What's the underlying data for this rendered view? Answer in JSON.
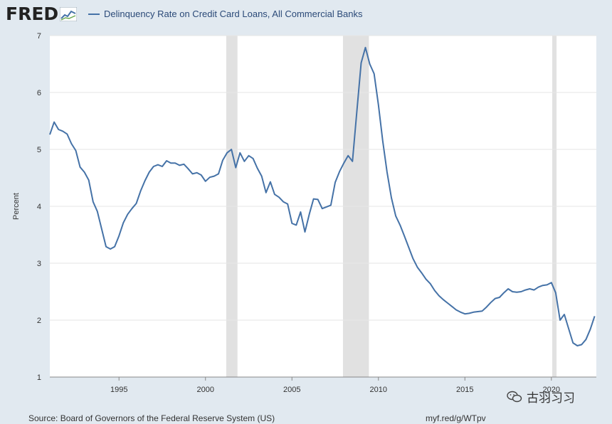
{
  "header": {
    "logo_text": "FRED",
    "legend_label": "Delinquency Rate on Credit Card Loans, All Commercial Banks"
  },
  "colors": {
    "line": "#4572a7",
    "recession": "#e1e1e1",
    "background": "#e1e9f0",
    "plot": "#ffffff"
  },
  "chart_data": {
    "type": "line",
    "title": "Delinquency Rate on Credit Card Loans, All Commercial Banks",
    "xlabel": "",
    "ylabel": "Percent",
    "xlim": [
      1991.0,
      2022.6
    ],
    "ylim": [
      1,
      7
    ],
    "x_ticks": [
      1995,
      2000,
      2005,
      2010,
      2015,
      2020
    ],
    "y_ticks": [
      1,
      2,
      3,
      4,
      5,
      6,
      7
    ],
    "grid": "horizontal",
    "legend_position": "top-left",
    "recessions": [
      [
        2001.2,
        2001.85
      ],
      [
        2007.95,
        2009.45
      ],
      [
        2020.05,
        2020.3
      ]
    ],
    "series": [
      {
        "name": "Delinquency Rate on Credit Card Loans, All Commercial Banks",
        "x": [
          1991.0,
          1991.25,
          1991.5,
          1991.75,
          1992.0,
          1992.25,
          1992.5,
          1992.75,
          1993.0,
          1993.25,
          1993.5,
          1993.75,
          1994.0,
          1994.25,
          1994.5,
          1994.75,
          1995.0,
          1995.25,
          1995.5,
          1995.75,
          1996.0,
          1996.25,
          1996.5,
          1996.75,
          1997.0,
          1997.25,
          1997.5,
          1997.75,
          1998.0,
          1998.25,
          1998.5,
          1998.75,
          1999.0,
          1999.25,
          1999.5,
          1999.75,
          2000.0,
          2000.25,
          2000.5,
          2000.75,
          2001.0,
          2001.25,
          2001.5,
          2001.75,
          2002.0,
          2002.25,
          2002.5,
          2002.75,
          2003.0,
          2003.25,
          2003.5,
          2003.75,
          2004.0,
          2004.25,
          2004.5,
          2004.75,
          2005.0,
          2005.25,
          2005.5,
          2005.75,
          2006.0,
          2006.25,
          2006.5,
          2006.75,
          2007.0,
          2007.25,
          2007.5,
          2007.75,
          2008.0,
          2008.25,
          2008.5,
          2008.75,
          2009.0,
          2009.25,
          2009.5,
          2009.75,
          2010.0,
          2010.25,
          2010.5,
          2010.75,
          2011.0,
          2011.25,
          2011.5,
          2011.75,
          2012.0,
          2012.25,
          2012.5,
          2012.75,
          2013.0,
          2013.25,
          2013.5,
          2013.75,
          2014.0,
          2014.25,
          2014.5,
          2014.75,
          2015.0,
          2015.25,
          2015.5,
          2015.75,
          2016.0,
          2016.25,
          2016.5,
          2016.75,
          2017.0,
          2017.25,
          2017.5,
          2017.75,
          2018.0,
          2018.25,
          2018.5,
          2018.75,
          2019.0,
          2019.25,
          2019.5,
          2019.75,
          2020.0,
          2020.25,
          2020.5,
          2020.75,
          2021.0,
          2021.25,
          2021.5,
          2021.75,
          2022.0,
          2022.25,
          2022.5
        ],
        "values": [
          5.26,
          5.48,
          5.35,
          5.32,
          5.27,
          5.1,
          4.98,
          4.69,
          4.6,
          4.46,
          4.08,
          3.91,
          3.6,
          3.29,
          3.25,
          3.29,
          3.48,
          3.71,
          3.86,
          3.96,
          4.05,
          4.27,
          4.45,
          4.6,
          4.7,
          4.73,
          4.7,
          4.8,
          4.76,
          4.76,
          4.72,
          4.74,
          4.66,
          4.57,
          4.59,
          4.55,
          4.44,
          4.51,
          4.53,
          4.57,
          4.81,
          4.94,
          5.0,
          4.68,
          4.94,
          4.79,
          4.89,
          4.84,
          4.67,
          4.53,
          4.24,
          4.43,
          4.21,
          4.16,
          4.08,
          4.04,
          3.7,
          3.67,
          3.9,
          3.55,
          3.86,
          4.13,
          4.12,
          3.96,
          3.99,
          4.02,
          4.42,
          4.61,
          4.76,
          4.89,
          4.79,
          5.66,
          6.52,
          6.79,
          6.5,
          6.33,
          5.78,
          5.15,
          4.6,
          4.15,
          3.83,
          3.67,
          3.48,
          3.28,
          3.08,
          2.93,
          2.83,
          2.72,
          2.64,
          2.52,
          2.43,
          2.36,
          2.3,
          2.24,
          2.18,
          2.14,
          2.11,
          2.12,
          2.14,
          2.15,
          2.16,
          2.23,
          2.31,
          2.38,
          2.4,
          2.48,
          2.55,
          2.5,
          2.49,
          2.5,
          2.53,
          2.55,
          2.53,
          2.58,
          2.61,
          2.62,
          2.66,
          2.48,
          2.0,
          2.1,
          1.85,
          1.6,
          1.55,
          1.57,
          1.66,
          1.84,
          2.07
        ]
      }
    ]
  },
  "footer": {
    "source": "Source: Board of Governors of the Federal Reserve System (US)",
    "url": "myf.red/g/WTpv"
  },
  "watermark": {
    "text": "古羽习习"
  }
}
